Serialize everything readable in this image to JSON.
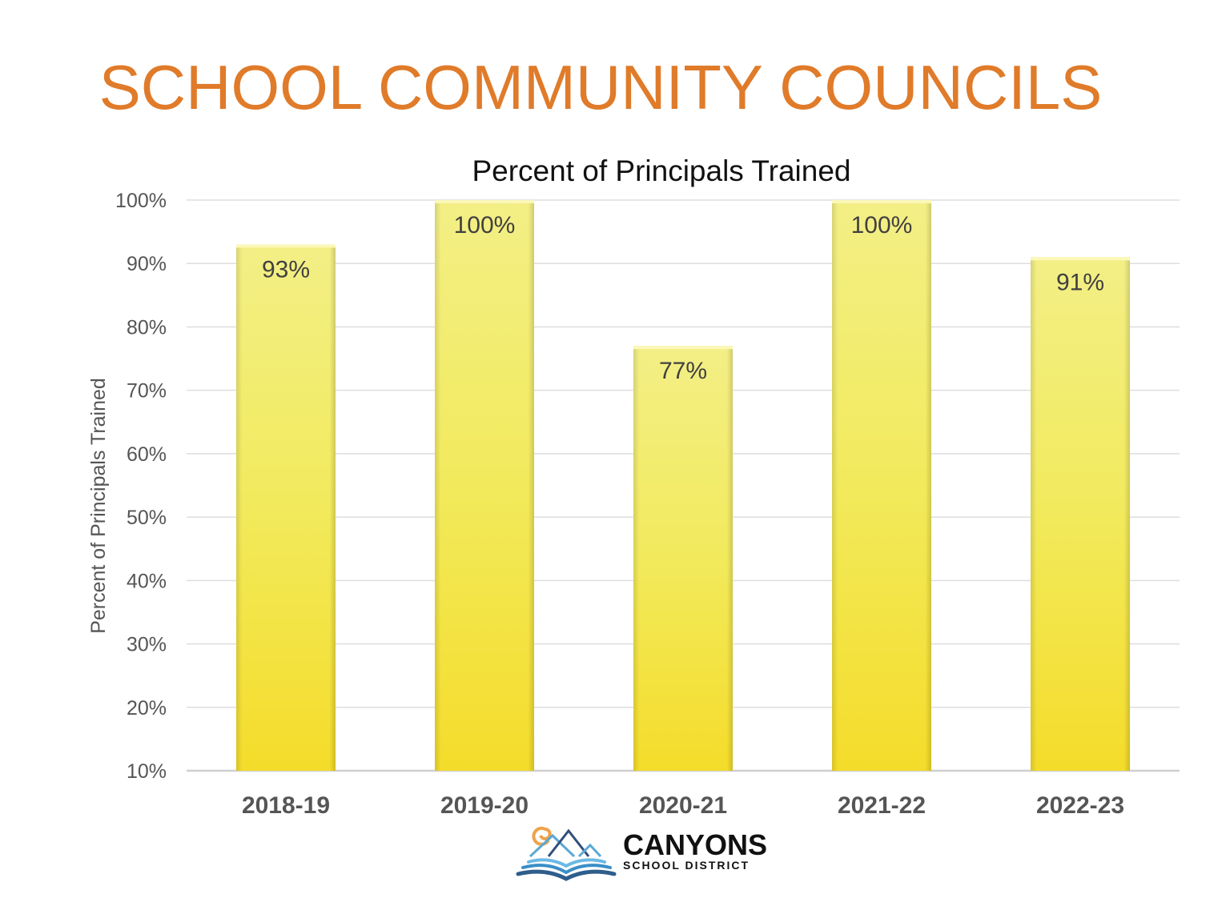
{
  "page_title": "SCHOOL COMMUNITY COUNCILS",
  "colors": {
    "title": "#e07b2a",
    "bar_top": "#f2ef80",
    "bar_bottom": "#f4dc2a",
    "grid": "#d9d9d9"
  },
  "logo": {
    "name": "CANYONS",
    "subtitle": "SCHOOL DISTRICT"
  },
  "chart_data": {
    "type": "bar",
    "title": "Percent of Principals Trained",
    "xlabel": "",
    "ylabel": "Percent of Principals Trained",
    "categories": [
      "2018-19",
      "2019-20",
      "2020-21",
      "2021-22",
      "2022-23"
    ],
    "values": [
      93,
      100,
      77,
      100,
      91
    ],
    "data_labels": [
      "93%",
      "100%",
      "77%",
      "100%",
      "91%"
    ],
    "ylim": [
      10,
      100
    ],
    "yticks": [
      10,
      20,
      30,
      40,
      50,
      60,
      70,
      80,
      90,
      100
    ],
    "ytick_labels": [
      "10%",
      "20%",
      "30%",
      "40%",
      "50%",
      "60%",
      "70%",
      "80%",
      "90%",
      "100%"
    ],
    "grid": true,
    "legend": "none"
  }
}
